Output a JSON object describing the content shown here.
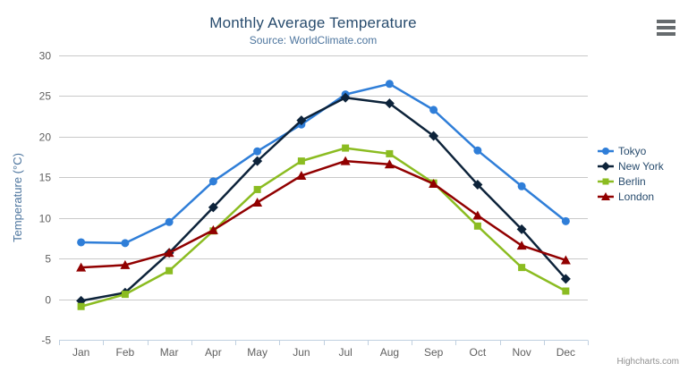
{
  "header": {
    "title": "Monthly Average Temperature",
    "subtitle": "Source: WorldClimate.com"
  },
  "icons": {
    "context_menu": "hamburger"
  },
  "credit": "Highcharts.com",
  "colors": {
    "title": "#274b6d",
    "subtitle": "#4d759e",
    "axis_title": "#4d759e",
    "tick_label": "#606060",
    "gridline": "#c9c9c9",
    "axis_line": "#c0d0e0",
    "legend_text": "#274b6d",
    "menu_icon": "#666b6e",
    "credit_text": "#909090"
  },
  "chart_data": {
    "type": "line",
    "title": "Monthly Average Temperature",
    "subtitle": "Source: WorldClimate.com",
    "xlabel": "",
    "ylabel": "Temperature (°C)",
    "ylim": [
      -5,
      30
    ],
    "ytick_interval": 5,
    "grid": true,
    "legend_position": "right",
    "categories": [
      "Jan",
      "Feb",
      "Mar",
      "Apr",
      "May",
      "Jun",
      "Jul",
      "Aug",
      "Sep",
      "Oct",
      "Nov",
      "Dec"
    ],
    "series": [
      {
        "name": "Tokyo",
        "color": "#2f7ed8",
        "marker": "circle",
        "values": [
          7.0,
          6.9,
          9.5,
          14.5,
          18.2,
          21.5,
          25.2,
          26.5,
          23.3,
          18.3,
          13.9,
          9.6
        ]
      },
      {
        "name": "New York",
        "color": "#0d233a",
        "marker": "diamond",
        "values": [
          -0.2,
          0.8,
          5.7,
          11.3,
          17.0,
          22.0,
          24.8,
          24.1,
          20.1,
          14.1,
          8.6,
          2.5
        ]
      },
      {
        "name": "Berlin",
        "color": "#8bbc21",
        "marker": "square",
        "values": [
          -0.9,
          0.6,
          3.5,
          8.4,
          13.5,
          17.0,
          18.6,
          17.9,
          14.3,
          9.0,
          3.9,
          1.0
        ]
      },
      {
        "name": "London",
        "color": "#910000",
        "marker": "triangle",
        "values": [
          3.9,
          4.2,
          5.7,
          8.5,
          11.9,
          15.2,
          17.0,
          16.6,
          14.2,
          10.3,
          6.6,
          4.8
        ]
      }
    ]
  }
}
